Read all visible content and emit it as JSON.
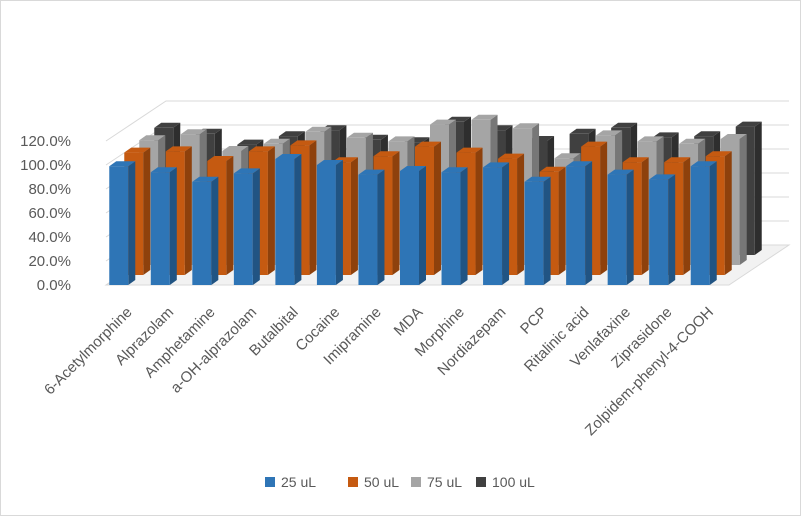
{
  "chart_data": {
    "type": "bar",
    "projection": "3d-clustered-column",
    "title": "",
    "xlabel": "",
    "ylabel": "",
    "ylim": [
      0,
      1.2
    ],
    "yticks": [
      "0.0%",
      "20.0%",
      "40.0%",
      "60.0%",
      "80.0%",
      "100.0%",
      "120.0%"
    ],
    "grid": true,
    "legend_position": "bottom",
    "categories": [
      "6-Acetylmorphine",
      "Alprazolam",
      "Amphetamine",
      "a-OH-alprazolam",
      "Butalbital",
      "Cocaine",
      "Imipramine",
      "MDA",
      "Morphine",
      "Nordiazepam",
      "PCP",
      "Ritalinic acid",
      "Venlafaxine",
      "Ziprasidone",
      "Zolpidem-phenyl-4-COOH"
    ],
    "series": [
      {
        "name": "25 uL",
        "color": "#2E75B6",
        "values": [
          0.99,
          0.94,
          0.86,
          0.93,
          1.05,
          1.0,
          0.92,
          0.95,
          0.94,
          0.98,
          0.86,
          0.99,
          0.92,
          0.88,
          0.99
        ]
      },
      {
        "name": "50 uL",
        "color": "#C55A11",
        "values": [
          1.02,
          1.03,
          0.95,
          1.03,
          1.08,
          0.94,
          0.99,
          1.07,
          1.02,
          0.97,
          0.86,
          1.07,
          0.94,
          0.94,
          0.99
        ]
      },
      {
        "name": "75 uL",
        "color": "#A5A5A5",
        "values": [
          1.04,
          1.09,
          0.95,
          1.01,
          1.11,
          1.06,
          1.03,
          1.17,
          1.21,
          1.14,
          0.89,
          1.08,
          1.03,
          1.01,
          1.05
        ]
      },
      {
        "name": "100 uL",
        "color": "#404040",
        "values": [
          1.06,
          1.01,
          0.92,
          0.99,
          1.04,
          0.96,
          0.94,
          1.11,
          1.04,
          0.95,
          1.01,
          1.06,
          0.98,
          0.99,
          1.07
        ]
      }
    ]
  }
}
